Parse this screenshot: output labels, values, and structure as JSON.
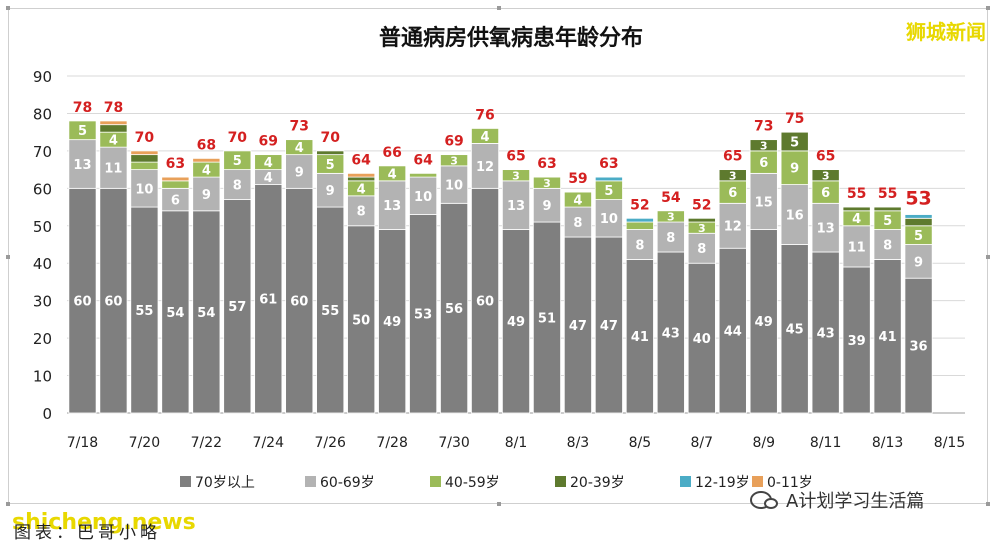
{
  "brand": "狮城新闻",
  "wechat": "A计划学习生活篇",
  "watermark": "shicheng.news",
  "caption": "图表：巴哥小略",
  "chart_data": {
    "type": "bar",
    "stacked": true,
    "title": "普通病房供氧病患年龄分布",
    "ylim": [
      0,
      90
    ],
    "yticks": [
      0,
      10,
      20,
      30,
      40,
      50,
      60,
      70,
      80,
      90
    ],
    "grid": true,
    "legend_position": "bottom",
    "dates": [
      "7/18",
      "7/19",
      "7/20",
      "7/21",
      "7/22",
      "7/23",
      "7/24",
      "7/25",
      "7/26",
      "7/27",
      "7/28",
      "7/29",
      "7/30",
      "7/31",
      "8/1",
      "8/2",
      "8/3",
      "8/4",
      "8/5",
      "8/6",
      "8/7",
      "8/8",
      "8/9",
      "8/10",
      "8/11",
      "8/12",
      "8/13",
      "8/14"
    ],
    "xtick_labels": [
      "7/18",
      "7/20",
      "7/22",
      "7/24",
      "7/26",
      "7/28",
      "7/30",
      "8/1",
      "8/3",
      "8/5",
      "8/7",
      "8/9",
      "8/11",
      "8/13",
      "8/15"
    ],
    "totals": [
      78,
      78,
      70,
      63,
      68,
      70,
      69,
      73,
      70,
      64,
      66,
      64,
      69,
      76,
      65,
      63,
      59,
      63,
      52,
      54,
      52,
      65,
      73,
      75,
      65,
      55,
      55,
      53
    ],
    "series": [
      {
        "name": "70岁以上",
        "color": "#7f7f7f",
        "values": [
          60,
          60,
          55,
          54,
          54,
          57,
          61,
          60,
          55,
          50,
          49,
          53,
          56,
          60,
          49,
          51,
          47,
          47,
          41,
          43,
          40,
          44,
          49,
          45,
          43,
          39,
          41,
          36
        ]
      },
      {
        "name": "60-69岁",
        "color": "#b3b3b3",
        "values": [
          13,
          11,
          10,
          6,
          9,
          8,
          4,
          9,
          9,
          8,
          13,
          10,
          10,
          12,
          13,
          9,
          8,
          10,
          8,
          8,
          8,
          12,
          15,
          16,
          13,
          11,
          8,
          9
        ]
      },
      {
        "name": "40-59岁",
        "color": "#9bbb59",
        "values": [
          5,
          4,
          2,
          2,
          4,
          5,
          4,
          4,
          5,
          4,
          4,
          1,
          3,
          4,
          3,
          3,
          4,
          5,
          2,
          3,
          3,
          6,
          6,
          9,
          6,
          4,
          5,
          5
        ]
      },
      {
        "name": "20-39岁",
        "color": "#5e7a2e",
        "values": [
          0,
          2,
          2,
          0,
          0,
          0,
          0,
          0,
          1,
          1,
          0,
          0,
          0,
          0,
          0,
          0,
          0,
          0,
          0,
          0,
          1,
          3,
          3,
          5,
          3,
          1,
          1,
          2
        ]
      },
      {
        "name": "12-19岁",
        "color": "#4bacc6",
        "values": [
          0,
          0,
          0,
          0,
          0,
          0,
          0,
          0,
          0,
          0,
          0,
          0,
          0,
          0,
          0,
          0,
          0,
          1,
          1,
          0,
          0,
          0,
          0,
          0,
          0,
          0,
          0,
          1
        ]
      },
      {
        "name": "0-11岁",
        "color": "#e8a05a",
        "values": [
          0,
          1,
          1,
          1,
          1,
          0,
          0,
          0,
          0,
          1,
          0,
          0,
          0,
          0,
          0,
          0,
          0,
          0,
          0,
          0,
          0,
          0,
          0,
          0,
          0,
          0,
          0,
          0
        ]
      }
    ]
  }
}
